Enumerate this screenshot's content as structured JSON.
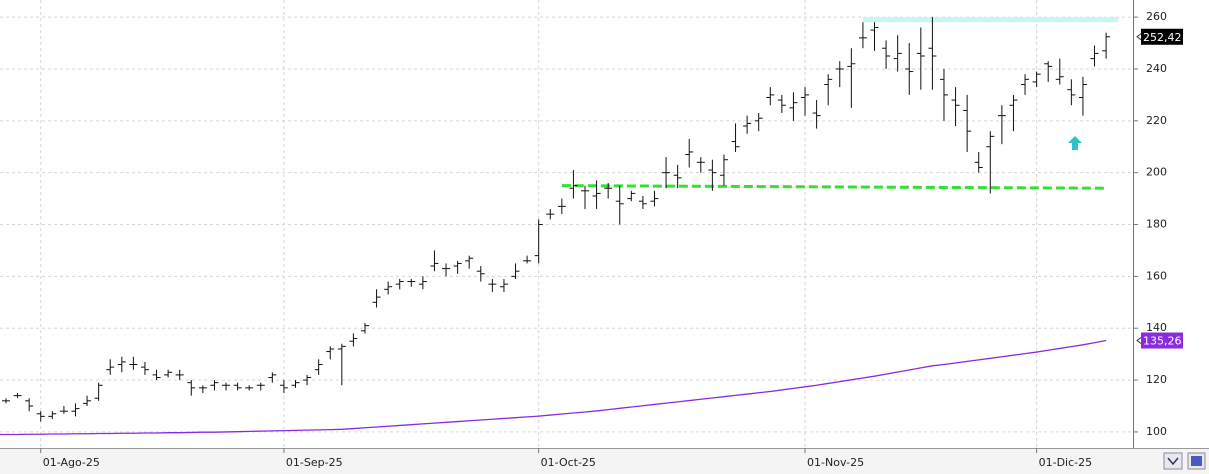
{
  "chart_data": {
    "type": "ohlc",
    "categories": [
      null,
      null,
      null,
      "01-Ago-25",
      null,
      null,
      null,
      null,
      null,
      null,
      null,
      null,
      null,
      null,
      null,
      null,
      null,
      null,
      null,
      null,
      null,
      null,
      null,
      null,
      "01-Sep-25",
      null,
      null,
      null,
      null,
      null,
      null,
      null,
      null,
      null,
      null,
      null,
      null,
      null,
      null,
      null,
      null,
      null,
      null,
      null,
      null,
      null,
      "01-Oct-25",
      null,
      null,
      null,
      null,
      null,
      null,
      null,
      null,
      null,
      null,
      null,
      null,
      null,
      null,
      null,
      null,
      null,
      null,
      null,
      null,
      null,
      null,
      "01-Nov-25",
      null,
      null,
      null,
      null,
      null,
      null,
      null,
      null,
      null,
      null,
      null,
      null,
      null,
      null,
      null,
      null,
      null,
      null,
      null,
      "01-Dic-25",
      null,
      null,
      null,
      null,
      null,
      null
    ],
    "open": [
      112,
      114,
      112,
      107,
      106,
      108,
      108,
      111,
      113,
      124,
      126,
      126,
      125,
      122,
      122,
      122,
      119,
      117,
      118,
      118,
      118,
      117,
      118,
      121,
      118,
      118,
      120,
      124,
      131,
      132,
      135,
      139,
      150,
      155,
      157,
      158,
      157,
      164,
      163,
      164,
      166,
      162,
      157,
      156,
      160,
      166,
      168,
      184,
      187,
      194,
      193,
      191,
      194,
      189,
      190,
      189,
      189,
      200,
      199,
      207,
      204,
      201,
      199,
      212,
      218,
      220,
      229,
      228,
      225,
      229,
      223,
      234,
      240,
      241,
      252,
      255,
      248,
      244,
      240,
      246,
      248,
      236,
      228,
      224,
      204,
      210,
      222,
      226,
      234,
      235,
      242,
      236,
      232,
      229,
      244,
      247
    ],
    "high": [
      113,
      115,
      113,
      108,
      108,
      110,
      111,
      114,
      119,
      128,
      129,
      129,
      127,
      124,
      124,
      124,
      120,
      118,
      120,
      119,
      119,
      118,
      119,
      123,
      120,
      120,
      122,
      128,
      133,
      134,
      138,
      142,
      155,
      158,
      159,
      159,
      160,
      170,
      165,
      166,
      168,
      164,
      159,
      159,
      165,
      168,
      182,
      186,
      190,
      201,
      195,
      197,
      196,
      195,
      193,
      191,
      193,
      206,
      203,
      213,
      206,
      205,
      207,
      219,
      222,
      223,
      233,
      230,
      231,
      233,
      228,
      238,
      243,
      248,
      258,
      258,
      251,
      253,
      250,
      256,
      260,
      240,
      233,
      230,
      208,
      216,
      226,
      230,
      238,
      239,
      243,
      244,
      236,
      237,
      249,
      254
    ],
    "low": [
      111,
      113,
      108,
      104,
      105,
      107,
      106,
      110,
      112,
      122,
      123,
      124,
      122,
      120,
      121,
      120,
      114,
      115,
      116,
      116,
      116,
      116,
      116,
      119,
      115,
      117,
      118,
      122,
      128,
      118,
      133,
      138,
      148,
      153,
      155,
      156,
      155,
      162,
      160,
      161,
      163,
      158,
      154,
      154,
      159,
      165,
      165,
      182,
      184,
      190,
      186,
      186,
      190,
      180,
      189,
      186,
      187,
      194,
      194,
      202,
      200,
      193,
      195,
      208,
      215,
      216,
      226,
      223,
      220,
      222,
      217,
      226,
      233,
      225,
      248,
      247,
      240,
      239,
      230,
      232,
      232,
      220,
      218,
      208,
      200,
      192,
      211,
      216,
      230,
      233,
      235,
      234,
      226,
      222,
      241,
      244
    ],
    "close": [
      112,
      114,
      110,
      106,
      107,
      108,
      109,
      112,
      118,
      125,
      127,
      126,
      124,
      121,
      123,
      122,
      117,
      117,
      119,
      118,
      117,
      117,
      118,
      122,
      117,
      119,
      121,
      126,
      132,
      133,
      136,
      141,
      152,
      156,
      158,
      158,
      158,
      165,
      163,
      165,
      167,
      161,
      157,
      157,
      162,
      166,
      180,
      184,
      187,
      195,
      193,
      192,
      194,
      188,
      192,
      188,
      190,
      200,
      198,
      208,
      204,
      200,
      205,
      210,
      219,
      221,
      230,
      226,
      227,
      230,
      222,
      236,
      240,
      242,
      252,
      256,
      245,
      246,
      239,
      245,
      245,
      230,
      226,
      216,
      202,
      214,
      222,
      228,
      236,
      238,
      241,
      237,
      230,
      234,
      246,
      252.42
    ],
    "close_label": "252,42",
    "bar_color": "#111111",
    "average": {
      "color": "#8a2be2",
      "label": "135,26",
      "values": [
        99.0,
        99.0,
        99.1,
        99.1,
        99.2,
        99.2,
        99.3,
        99.3,
        99.4,
        99.4,
        99.5,
        99.5,
        99.6,
        99.6,
        99.7,
        99.7,
        99.8,
        99.9,
        99.9,
        100.0,
        100.1,
        100.2,
        100.3,
        100.4,
        100.5,
        100.6,
        100.7,
        100.8,
        100.9,
        101.0,
        101.3,
        101.6,
        101.9,
        102.2,
        102.5,
        102.8,
        103.1,
        103.4,
        103.7,
        104.0,
        104.3,
        104.6,
        104.9,
        105.2,
        105.5,
        105.8,
        106.1,
        106.5,
        106.9,
        107.3,
        107.7,
        108.1,
        108.6,
        109.1,
        109.6,
        110.1,
        110.6,
        111.1,
        111.6,
        112.1,
        112.6,
        113.1,
        113.6,
        114.1,
        114.6,
        115.1,
        115.6,
        116.2,
        116.8,
        117.4,
        118.0,
        118.7,
        119.4,
        120.1,
        120.8,
        121.5,
        122.3,
        123.1,
        123.9,
        124.7,
        125.5,
        126.0,
        126.6,
        127.2,
        127.8,
        128.4,
        129.0,
        129.6,
        130.2,
        130.8,
        131.5,
        132.2,
        132.9,
        133.6,
        134.4,
        135.26
      ]
    },
    "support": {
      "color": "#33e033",
      "values": [
        195,
        194
      ],
      "range": [
        48,
        95
      ]
    },
    "resistance": {
      "color": "#c6f6f6",
      "values": [
        258,
        260
      ],
      "range": [
        74,
        96
      ]
    },
    "ylim": [
      93.8,
      266.6
    ],
    "yticks": [
      100,
      120,
      140,
      160,
      180,
      200,
      220,
      240,
      260
    ],
    "grid": true
  }
}
